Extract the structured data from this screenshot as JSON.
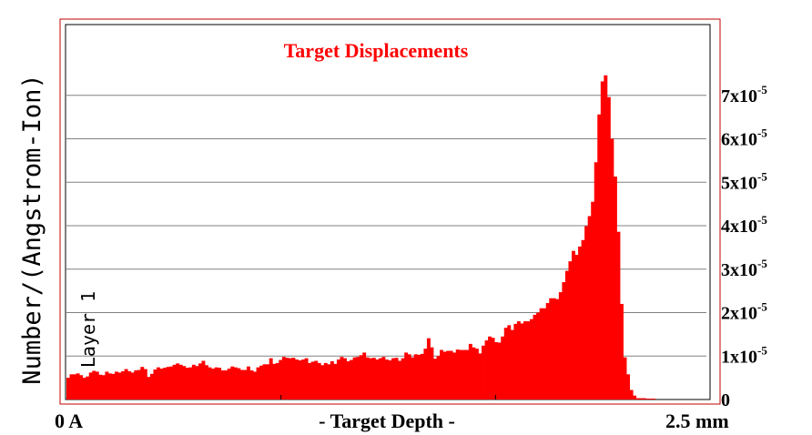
{
  "colors": {
    "bars": "#ff0000",
    "frame": "#c00000",
    "title": "#ff0000",
    "grid": "#808080"
  },
  "chart_data": {
    "type": "bar",
    "title": "Target Displacements",
    "ylabel": "Number/(Angstrom-Ion)",
    "xlabel": "- Target Depth -",
    "x_start_label": "0 A",
    "x_end_label": "2.5 mm",
    "layer_label": "Layer 1",
    "xlim": [
      0,
      2.5
    ],
    "x_unit": "mm",
    "ylim": [
      0,
      8e-05
    ],
    "grid": true,
    "y_ticks": [
      {
        "value": 0,
        "mant": "0",
        "exp": ""
      },
      {
        "value": 1e-05,
        "mant": "1x10",
        "exp": "-5"
      },
      {
        "value": 2e-05,
        "mant": "2x10",
        "exp": "-5"
      },
      {
        "value": 3e-05,
        "mant": "3x10",
        "exp": "-5"
      },
      {
        "value": 4e-05,
        "mant": "4x10",
        "exp": "-5"
      },
      {
        "value": 5e-05,
        "mant": "5x10",
        "exp": "-5"
      },
      {
        "value": 6e-05,
        "mant": "6x10",
        "exp": "-5"
      },
      {
        "value": 7e-05,
        "mant": "7x10",
        "exp": "-5"
      }
    ],
    "bin_width_mm": 0.0125,
    "values": [
      0.5,
      0.58,
      0.58,
      0.6,
      0.56,
      0.5,
      0.53,
      0.62,
      0.66,
      0.64,
      0.57,
      0.56,
      0.64,
      0.6,
      0.59,
      0.64,
      0.62,
      0.65,
      0.7,
      0.65,
      0.62,
      0.67,
      0.68,
      0.75,
      0.7,
      0.52,
      0.59,
      0.69,
      0.74,
      0.71,
      0.73,
      0.75,
      0.76,
      0.8,
      0.83,
      0.8,
      0.77,
      0.73,
      0.74,
      0.8,
      0.77,
      0.83,
      0.89,
      0.79,
      0.74,
      0.71,
      0.74,
      0.73,
      0.67,
      0.67,
      0.71,
      0.76,
      0.74,
      0.72,
      0.68,
      0.68,
      0.76,
      0.67,
      0.64,
      0.74,
      0.78,
      0.81,
      0.81,
      0.95,
      0.82,
      0.84,
      0.91,
      0.98,
      0.96,
      0.95,
      0.96,
      0.92,
      0.9,
      0.92,
      0.95,
      0.84,
      0.87,
      0.89,
      0.84,
      0.79,
      0.84,
      0.81,
      0.88,
      0.82,
      0.92,
      0.98,
      0.95,
      0.88,
      0.91,
      0.97,
      0.98,
      1.02,
      1.08,
      0.97,
      0.95,
      0.96,
      0.92,
      0.95,
      0.98,
      0.92,
      0.9,
      0.95,
      0.96,
      0.89,
      0.95,
      1.08,
      1.04,
      0.97,
      1.04,
      1.03,
      1.05,
      1.17,
      1.41,
      1.2,
      0.94,
      1.0,
      1.14,
      1.1,
      1.12,
      1.12,
      1.08,
      1.15,
      1.14,
      1.14,
      1.14,
      1.28,
      1.2,
      1.17,
      1.06,
      1.24,
      1.36,
      1.45,
      1.42,
      1.32,
      1.31,
      1.45,
      1.65,
      1.71,
      1.6,
      1.74,
      1.8,
      1.75,
      1.8,
      1.8,
      1.85,
      1.95,
      2.0,
      2.1,
      2.1,
      2.22,
      2.33,
      2.33,
      2.31,
      2.47,
      2.7,
      2.96,
      3.18,
      3.42,
      3.33,
      3.52,
      3.67,
      3.99,
      4.22,
      4.55,
      5.46,
      6.56,
      7.32,
      7.46,
      6.96,
      6.0,
      5.13,
      3.86,
      2.2,
      0.97,
      0.58,
      0.22,
      0.09,
      0.03,
      0.03,
      0.03,
      0.02,
      0.02,
      0.02
    ]
  }
}
